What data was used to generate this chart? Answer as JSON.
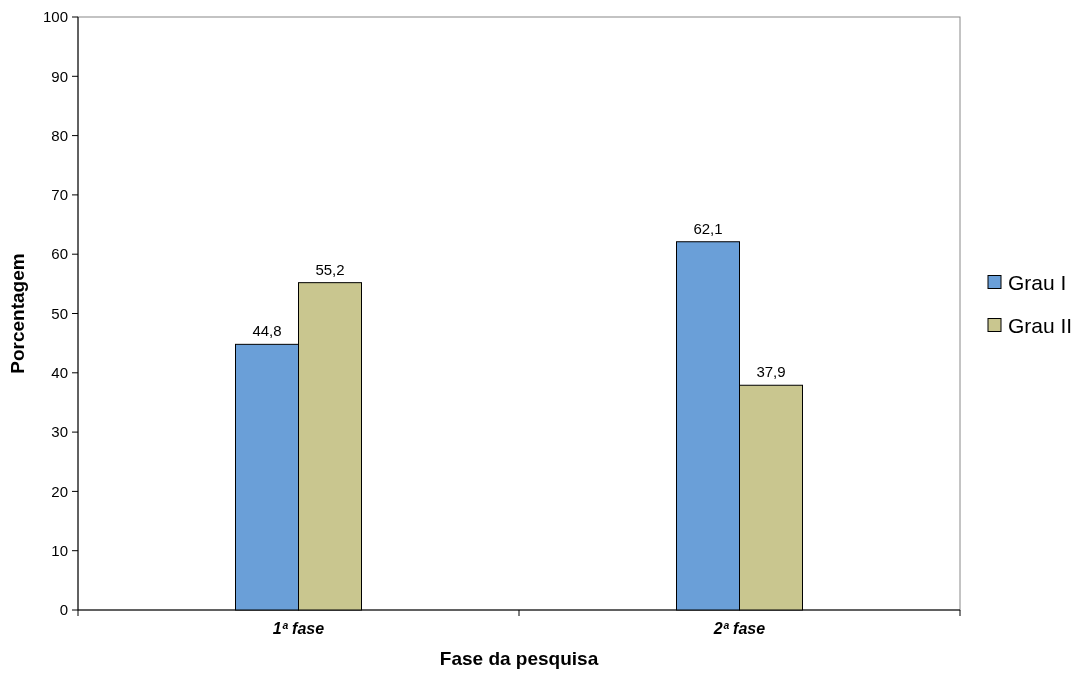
{
  "chart_data": {
    "type": "bar",
    "xlabel": "Fase da pesquisa",
    "ylabel": "Porcentagem",
    "categories": [
      "1ª fase",
      "2ª fase"
    ],
    "series": [
      {
        "name": "Grau I",
        "color": "#6a9fd8",
        "values": [
          44.8,
          62.1
        ],
        "value_labels": [
          "44,8",
          "62,1"
        ]
      },
      {
        "name": "Grau II",
        "color": "#c9c68f",
        "values": [
          55.2,
          37.9
        ],
        "value_labels": [
          "55,2",
          "37,9"
        ]
      }
    ],
    "ylim": [
      0,
      100
    ],
    "yticks": [
      0,
      10,
      20,
      30,
      40,
      50,
      60,
      70,
      80,
      90,
      100
    ],
    "grid": false,
    "legend": "right"
  }
}
